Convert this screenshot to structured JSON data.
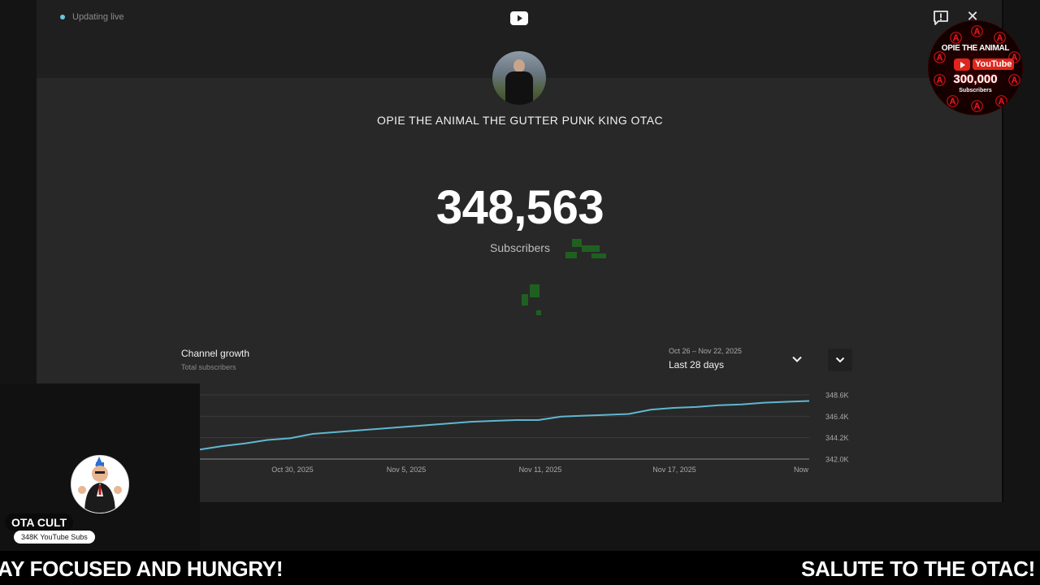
{
  "status": {
    "live_label": "Updating live",
    "dot_color": "#6ec3e0"
  },
  "header": {
    "logo_icon": "youtube-play-icon",
    "feedback_icon": "feedback-icon",
    "close_glyph": "✕"
  },
  "badge": {
    "title": "OPIE THE ANIMAL",
    "yt_word": "YouTube",
    "count": "300,000",
    "sub": "Subscribers",
    "accent": "#d8141a"
  },
  "channel": {
    "name": "OPIE THE ANIMAL THE GUTTER PUNK KING OTAC"
  },
  "counter": {
    "value": "348,563",
    "label": "Subscribers"
  },
  "growth": {
    "title": "Channel growth",
    "subtitle": "Total subscribers",
    "date_range": "Oct 26 – Nov 22, 2025",
    "period": "Last 28 days"
  },
  "chart_data": {
    "type": "line",
    "ylim": [
      342.0,
      349.4
    ],
    "y_ticks": [
      "348.6K",
      "346.4K",
      "344.2K",
      "342.0K"
    ],
    "x_ticks": [
      "Oct 30, 2025",
      "Nov 5, 2025",
      "Nov 11, 2025",
      "Nov 17, 2025",
      "Now"
    ],
    "line_color": "#5fb7cf",
    "grid": true,
    "series": [
      {
        "values": [
          343.1,
          343.5,
          343.8,
          344.2,
          344.4,
          344.9,
          345.1,
          345.3,
          345.5,
          345.7,
          345.9,
          346.1,
          346.3,
          346.4,
          346.5,
          346.5,
          346.9,
          347.0,
          347.1,
          347.2,
          347.7,
          347.9,
          348.0,
          348.2,
          348.3,
          348.5,
          348.6,
          348.7
        ]
      }
    ]
  },
  "overlay": {
    "name": "OTA CULT",
    "subs": "348K YouTube Subs"
  },
  "ticker": {
    "left_text": "AY FOCUSED AND HUNGRY!",
    "right_text": "SALUTE TO THE OTAC! W"
  }
}
